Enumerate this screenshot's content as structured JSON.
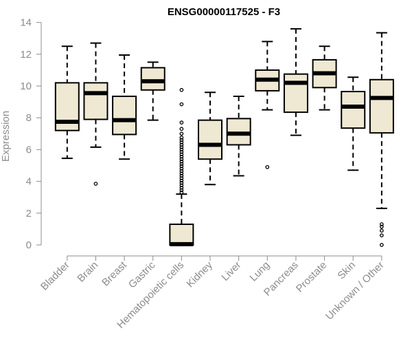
{
  "chart_data": {
    "type": "boxplot",
    "title": "ENSG00000117525 - F3",
    "xlabel": "",
    "ylabel": "Expression",
    "ylim": [
      0,
      14
    ],
    "yticks": [
      0,
      2,
      4,
      6,
      8,
      10,
      12,
      14
    ],
    "grid": false,
    "box_fill": "#efe8d2",
    "box_stroke": "#000000",
    "median_color": "#000000",
    "axis_color": "#8c8c8c",
    "categories": [
      "Bladder",
      "Brain",
      "Breast",
      "Gastric",
      "Hematopoietic cells",
      "Kidney",
      "Liver",
      "Lung",
      "Pancreas",
      "Prostate",
      "Skin",
      "Unknown / Other"
    ],
    "boxes": [
      {
        "label": "Bladder",
        "whisker_low": 5.45,
        "q1": 7.2,
        "median": 7.75,
        "q3": 10.2,
        "whisker_high": 12.5,
        "outliers": []
      },
      {
        "label": "Brain",
        "whisker_low": 6.15,
        "q1": 7.9,
        "median": 9.55,
        "q3": 10.2,
        "whisker_high": 12.7,
        "outliers": [
          3.85
        ]
      },
      {
        "label": "Breast",
        "whisker_low": 5.4,
        "q1": 6.95,
        "median": 7.85,
        "q3": 9.35,
        "whisker_high": 11.95,
        "outliers": []
      },
      {
        "label": "Gastric",
        "whisker_low": 7.85,
        "q1": 9.75,
        "median": 10.3,
        "q3": 11.15,
        "whisker_high": 11.5,
        "outliers": []
      },
      {
        "label": "Hematopoietic cells",
        "whisker_low": 0,
        "q1": 0,
        "median": 0.05,
        "q3": 1.3,
        "whisker_high": 3.2,
        "outliers": [
          3.3,
          3.45,
          3.6,
          3.75,
          3.9,
          4.05,
          4.2,
          4.35,
          4.5,
          4.65,
          4.8,
          4.95,
          5.1,
          5.25,
          5.4,
          5.55,
          5.7,
          5.85,
          6.0,
          6.15,
          6.3,
          6.45,
          6.6,
          6.75,
          7.0,
          7.3,
          7.7,
          8.85,
          9.75
        ]
      },
      {
        "label": "Kidney",
        "whisker_low": 3.8,
        "q1": 5.4,
        "median": 6.3,
        "q3": 7.85,
        "whisker_high": 9.6,
        "outliers": []
      },
      {
        "label": "Liver",
        "whisker_low": 4.35,
        "q1": 6.3,
        "median": 7.0,
        "q3": 7.95,
        "whisker_high": 9.35,
        "outliers": []
      },
      {
        "label": "Lung",
        "whisker_low": 8.5,
        "q1": 9.7,
        "median": 10.4,
        "q3": 11.0,
        "whisker_high": 12.8,
        "outliers": [
          4.9
        ]
      },
      {
        "label": "Pancreas",
        "whisker_low": 6.9,
        "q1": 8.35,
        "median": 10.2,
        "q3": 10.75,
        "whisker_high": 13.6,
        "outliers": []
      },
      {
        "label": "Prostate",
        "whisker_low": 8.5,
        "q1": 9.9,
        "median": 10.8,
        "q3": 11.65,
        "whisker_high": 12.5,
        "outliers": []
      },
      {
        "label": "Skin",
        "whisker_low": 4.7,
        "q1": 7.35,
        "median": 8.7,
        "q3": 9.65,
        "whisker_high": 10.55,
        "outliers": []
      },
      {
        "label": "Unknown / Other",
        "whisker_low": 2.3,
        "q1": 7.05,
        "median": 9.25,
        "q3": 10.4,
        "whisker_high": 13.35,
        "outliers": [
          0.0,
          0.6,
          0.9,
          1.15,
          1.3
        ]
      }
    ]
  }
}
